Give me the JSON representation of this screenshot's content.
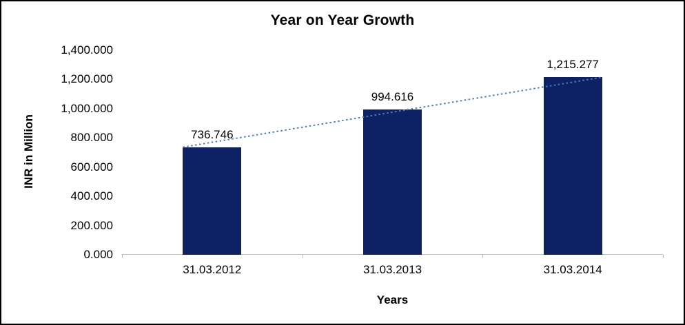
{
  "chart_data": {
    "type": "bar",
    "title": "Year on Year Growth",
    "xlabel": "Years",
    "ylabel": "INR in Million",
    "categories": [
      "31.03.2012",
      "31.03.2013",
      "31.03.2014"
    ],
    "values": [
      736.746,
      994.616,
      1215.277
    ],
    "value_labels": [
      "736.746",
      "994.616",
      "1,215.277"
    ],
    "ylim": [
      0,
      1400
    ],
    "yticks": [
      0,
      200,
      400,
      600,
      800,
      1000,
      1200,
      1400
    ],
    "ytick_labels": [
      "0.000",
      "200.000",
      "400.000",
      "600.000",
      "800.000",
      "1,000.000",
      "1,200.000",
      "1,400.000"
    ],
    "grid": false,
    "legend": false,
    "colors": {
      "bar": "#0d2164",
      "trendline": "#4a7ebb",
      "axis": "#bfbfbf",
      "text": "#000000"
    },
    "trendline_style": "dotted"
  }
}
